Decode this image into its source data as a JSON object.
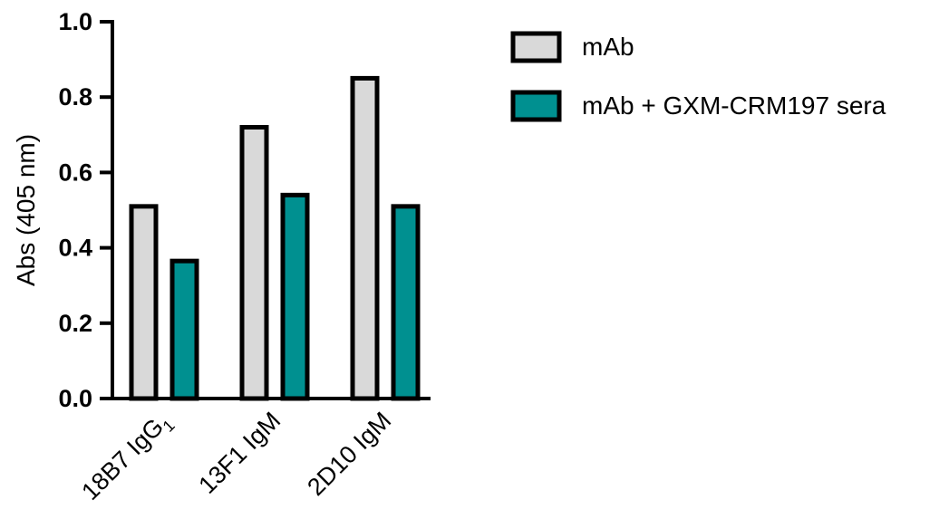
{
  "chart_data": {
    "type": "bar",
    "title": "",
    "xlabel": "",
    "ylabel": "Abs (405 nm)",
    "ylim": [
      0,
      1.0
    ],
    "yticks": [
      "0.0",
      "0.2",
      "0.4",
      "0.6",
      "0.8",
      "1.0"
    ],
    "categories": [
      {
        "name": "18B7 IgG",
        "subscript": "1"
      },
      {
        "name": "13F1 IgM",
        "subscript": ""
      },
      {
        "name": "2D10 IgM",
        "subscript": ""
      }
    ],
    "series": [
      {
        "name": "mAb",
        "color": "#d9d9d9",
        "values": [
          0.51,
          0.72,
          0.85
        ]
      },
      {
        "name": "mAb + GXM-CRM197 sera",
        "color": "#009090",
        "values": [
          0.365,
          0.54,
          0.51
        ]
      }
    ],
    "grid": false,
    "legend": "top-right",
    "bar_outline_color": "#000000"
  }
}
